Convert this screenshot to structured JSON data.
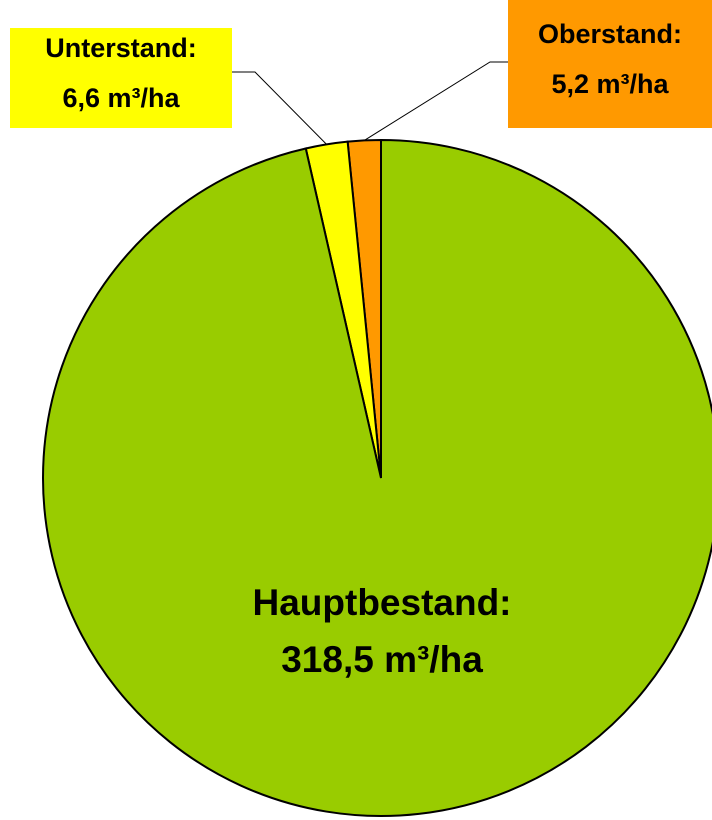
{
  "chart_data": {
    "type": "pie",
    "categories": [
      "Oberstand:",
      "Unterstand:",
      "Hauptbestand:"
    ],
    "values": [
      5.2,
      6.6,
      318.5
    ],
    "value_labels": [
      "5,2 m³/ha",
      "6,6 m³/ha",
      "318,5 m³/ha"
    ],
    "colors": [
      "#ff9900",
      "#ffff00",
      "#99cc00"
    ]
  }
}
